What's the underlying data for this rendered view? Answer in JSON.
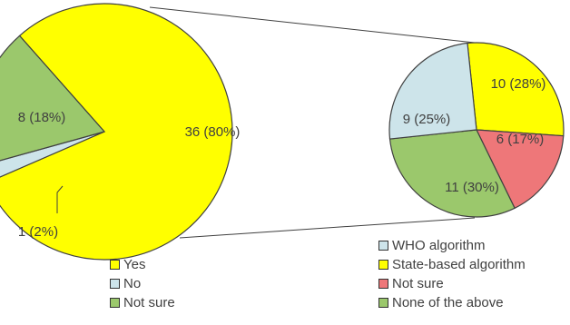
{
  "chart_data": [
    {
      "type": "pie",
      "title": "",
      "slices": [
        {
          "label": "Yes",
          "value": 36,
          "display": "36 (80%)",
          "color": "#ffff00"
        },
        {
          "label": "No",
          "value": 1,
          "display": "1 (2%)",
          "color": "#cde4ea"
        },
        {
          "label": "Not sure",
          "value": 8,
          "display": "8 (18%)",
          "color": "#9bc86c"
        }
      ],
      "legend": [
        "Yes",
        "No",
        "Not sure"
      ],
      "legend_position": "bottom"
    },
    {
      "type": "pie",
      "title": "",
      "slices": [
        {
          "label": "State-based algorithm",
          "value": 10,
          "display": "10 (28%)",
          "color": "#ffff00"
        },
        {
          "label": "Not sure",
          "value": 6,
          "display": "6 (17%)",
          "color": "#ee7779"
        },
        {
          "label": "None of the above",
          "value": 11,
          "display": "11 (30%)",
          "color": "#9bc86c"
        },
        {
          "label": "WHO algorithm",
          "value": 9,
          "display": "9 (25%)",
          "color": "#cde4ea"
        }
      ],
      "legend": [
        "WHO algorithm",
        "State-based algorithm",
        "Not sure",
        "None of the above"
      ],
      "legend_position": "bottom-right"
    }
  ]
}
